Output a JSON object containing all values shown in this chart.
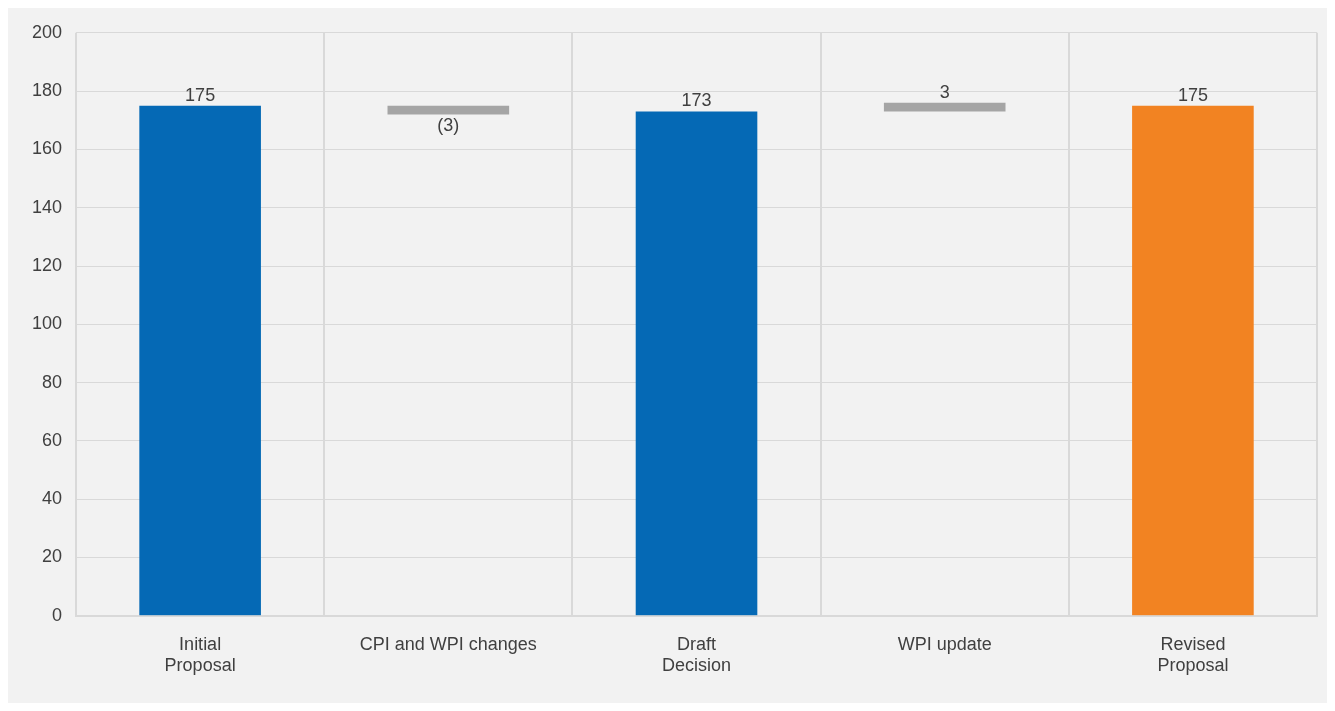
{
  "chart_data": {
    "type": "bar",
    "categories": [
      "Initial\nProposal",
      "CPI and WPI changes",
      "Draft\nDecision",
      "WPI update",
      "Revised\nProposal"
    ],
    "values": [
      175,
      -3,
      173,
      3,
      175
    ],
    "base": [
      0,
      175,
      0,
      173,
      0
    ],
    "colors": [
      "#0569b5",
      "#a5a5a5",
      "#0569b5",
      "#a5a5a5",
      "#f28322"
    ],
    "value_labels": [
      "175",
      "(3)",
      "173",
      "3",
      "175"
    ],
    "ylim": [
      0,
      200
    ],
    "yticks": [
      0,
      20,
      40,
      60,
      80,
      100,
      120,
      140,
      160,
      180,
      200
    ],
    "grid": true,
    "legend": false
  }
}
